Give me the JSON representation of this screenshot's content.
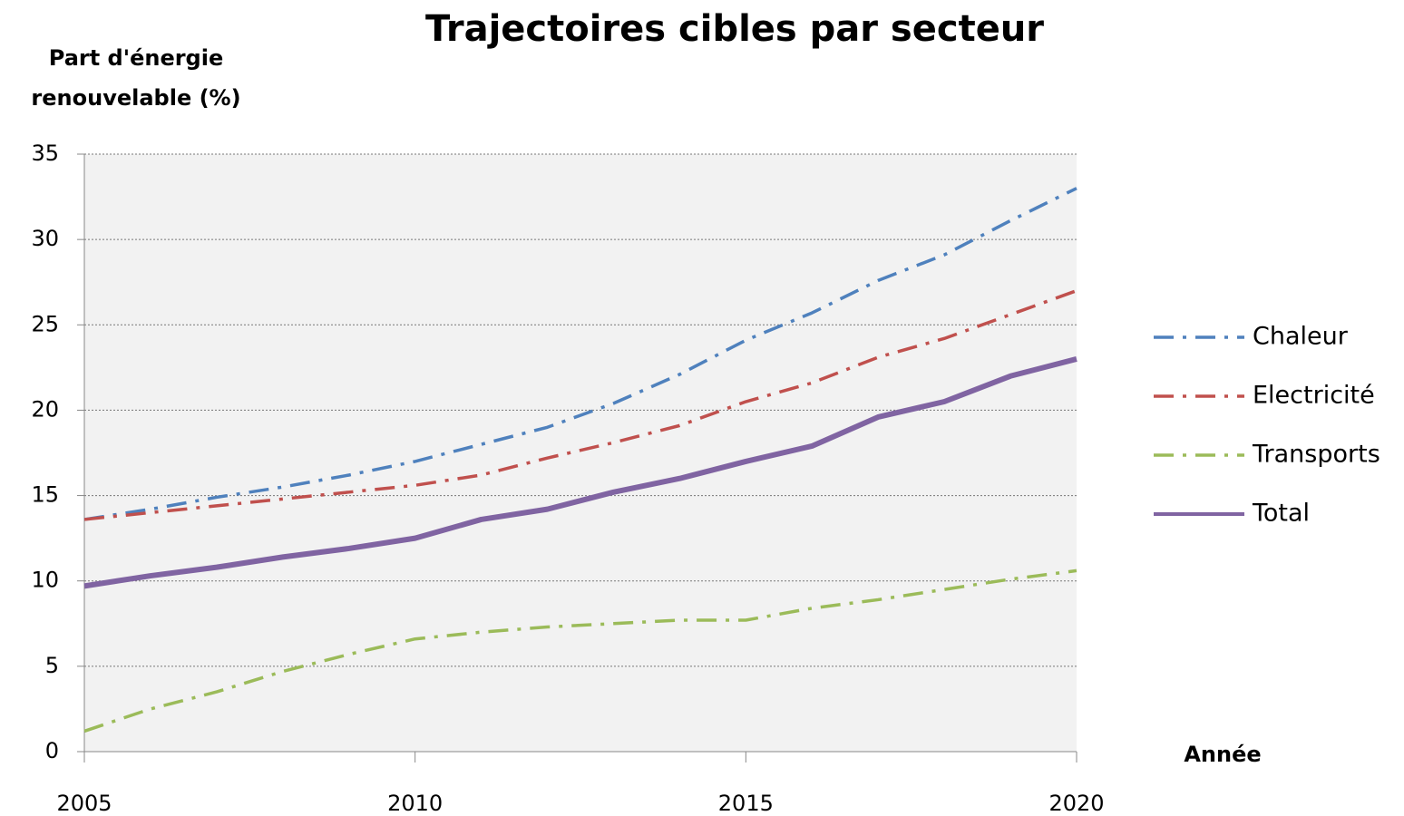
{
  "chart_data": {
    "type": "line",
    "title": "Trajectoires cibles par secteur",
    "y_label": "Part d'énergie renouvelable (%)",
    "x_label": "Année",
    "x": [
      2005,
      2006,
      2007,
      2008,
      2009,
      2010,
      2011,
      2012,
      2013,
      2014,
      2015,
      2016,
      2017,
      2018,
      2019,
      2020
    ],
    "series": [
      {
        "name": "Chaleur",
        "color": "#4f81bd",
        "style": "dashdot",
        "values": [
          13.6,
          14.2,
          14.9,
          15.5,
          16.2,
          17.0,
          18.0,
          19.0,
          20.4,
          22.1,
          24.1,
          25.7,
          27.6,
          29.1,
          31.1,
          33.0
        ]
      },
      {
        "name": "Electricité",
        "color": "#c0504d",
        "style": "dashdot",
        "values": [
          13.6,
          14.0,
          14.4,
          14.8,
          15.2,
          15.6,
          16.2,
          17.2,
          18.1,
          19.1,
          20.5,
          21.6,
          23.1,
          24.2,
          25.6,
          27.0
        ]
      },
      {
        "name": "Transports",
        "color": "#9bbb59",
        "style": "dashdot",
        "values": [
          1.2,
          2.5,
          3.5,
          4.7,
          5.7,
          6.6,
          7.0,
          7.3,
          7.5,
          7.7,
          7.7,
          8.4,
          8.9,
          9.5,
          10.1,
          10.6
        ]
      },
      {
        "name": "Total",
        "color": "#8064a2",
        "style": "solid",
        "values": [
          9.7,
          10.3,
          10.8,
          11.4,
          11.9,
          12.5,
          13.6,
          14.2,
          15.2,
          16.0,
          17.0,
          17.9,
          19.6,
          20.5,
          22.0,
          23.0
        ]
      }
    ],
    "xlim": [
      2005,
      2020
    ],
    "xticks": [
      2005,
      2010,
      2015,
      2020
    ],
    "ylim": [
      0,
      35
    ],
    "yticks": [
      0,
      5,
      10,
      15,
      20,
      25,
      30,
      35
    ],
    "grid": true,
    "legend": "right"
  }
}
